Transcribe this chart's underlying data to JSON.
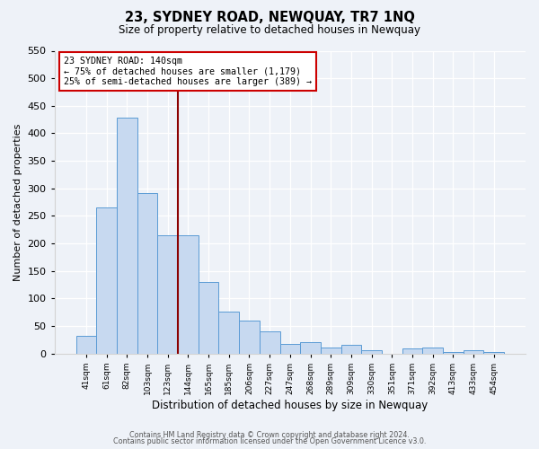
{
  "title": "23, SYDNEY ROAD, NEWQUAY, TR7 1NQ",
  "subtitle": "Size of property relative to detached houses in Newquay",
  "xlabel": "Distribution of detached houses by size in Newquay",
  "ylabel": "Number of detached properties",
  "bar_labels": [
    "41sqm",
    "61sqm",
    "82sqm",
    "103sqm",
    "123sqm",
    "144sqm",
    "165sqm",
    "185sqm",
    "206sqm",
    "227sqm",
    "247sqm",
    "268sqm",
    "289sqm",
    "309sqm",
    "330sqm",
    "351sqm",
    "371sqm",
    "392sqm",
    "413sqm",
    "433sqm",
    "454sqm"
  ],
  "bar_values": [
    32,
    265,
    428,
    291,
    215,
    215,
    130,
    76,
    59,
    40,
    18,
    21,
    11,
    15,
    5,
    0,
    9,
    10,
    2,
    5,
    3
  ],
  "bar_color": "#c7d9f0",
  "bar_edge_color": "#5b9bd5",
  "vline_color": "#8b0000",
  "annotation_title": "23 SYDNEY ROAD: 140sqm",
  "annotation_line1": "← 75% of detached houses are smaller (1,179)",
  "annotation_line2": "25% of semi-detached houses are larger (389) →",
  "ylim": [
    0,
    550
  ],
  "yticks": [
    0,
    50,
    100,
    150,
    200,
    250,
    300,
    350,
    400,
    450,
    500,
    550
  ],
  "footer1": "Contains HM Land Registry data © Crown copyright and database right 2024.",
  "footer2": "Contains public sector information licensed under the Open Government Licence v3.0.",
  "background_color": "#eef2f8",
  "plot_background": "#eef2f8"
}
